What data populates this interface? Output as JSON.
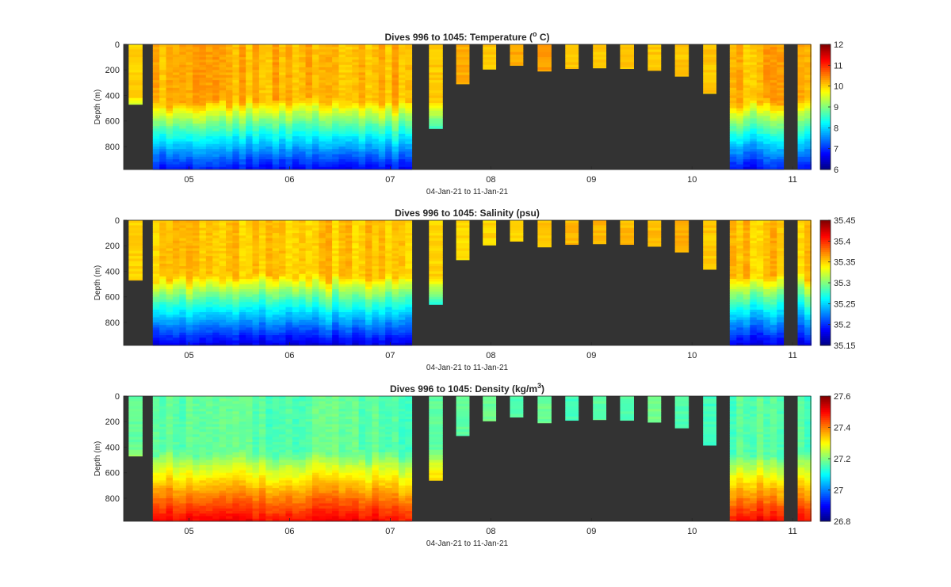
{
  "chart_data": [
    {
      "type": "heatmap",
      "title": "Dives 996 to 1045: Temperature (",
      "title_sup": "o",
      "title_tail": " C)",
      "ylabel": "Depth (m)",
      "xlabel": "04-Jan-21 to 11-Jan-21",
      "xticks": [
        "05",
        "06",
        "07",
        "08",
        "09",
        "10",
        "11"
      ],
      "yticks": [
        "0",
        "200",
        "400",
        "600",
        "800"
      ],
      "ylim": [
        0,
        980
      ],
      "cbar_ticks": [
        "6",
        "7",
        "8",
        "9",
        "10",
        "11",
        "12"
      ],
      "clim": [
        6,
        12
      ],
      "surface_value": 10.2,
      "deep_value": 6.8,
      "thermocline_depth_m": 450
    },
    {
      "type": "heatmap",
      "title": "Dives 996 to 1045: Salinity (psu)",
      "ylabel": "Depth (m)",
      "xlabel": "04-Jan-21 to 11-Jan-21",
      "xticks": [
        "05",
        "06",
        "07",
        "08",
        "09",
        "10",
        "11"
      ],
      "yticks": [
        "0",
        "200",
        "400",
        "600",
        "800"
      ],
      "ylim": [
        0,
        980
      ],
      "cbar_ticks": [
        "35.15",
        "35.2",
        "35.25",
        "35.3",
        "35.35",
        "35.4",
        "35.45"
      ],
      "clim": [
        35.15,
        35.45
      ],
      "surface_value": 35.355,
      "deep_value": 35.18,
      "thermocline_depth_m": 450
    },
    {
      "type": "heatmap",
      "title": "Dives 996 to 1045: Density (kg/m",
      "title_sup": "3",
      "title_tail": ")",
      "ylabel": "Depth (m)",
      "xlabel": "04-Jan-21 to 11-Jan-21",
      "xticks": [
        "05",
        "06",
        "07",
        "08",
        "09",
        "10",
        "11"
      ],
      "yticks": [
        "0",
        "200",
        "400",
        "600",
        "800"
      ],
      "ylim": [
        0,
        980
      ],
      "cbar_ticks": [
        "26.8",
        "27",
        "27.2",
        "27.4",
        "27.6"
      ],
      "clim": [
        26.8,
        27.6
      ],
      "surface_value": 27.17,
      "deep_value": 27.5,
      "thermocline_depth_m": 450
    }
  ],
  "dive_columns": [
    {
      "start_day": 4.4,
      "end_day": 4.535,
      "max_depth_m": 470,
      "type": "short"
    },
    {
      "start_day": 4.64,
      "end_day": 7.215,
      "max_depth_m": 980,
      "type": "full"
    },
    {
      "start_day": 7.385,
      "end_day": 7.52,
      "max_depth_m": 660,
      "type": "short"
    },
    {
      "start_day": 7.655,
      "end_day": 7.785,
      "max_depth_m": 310,
      "type": "short"
    },
    {
      "start_day": 7.92,
      "end_day": 8.05,
      "max_depth_m": 195,
      "type": "short"
    },
    {
      "start_day": 8.19,
      "end_day": 8.32,
      "max_depth_m": 165,
      "type": "short"
    },
    {
      "start_day": 8.465,
      "end_day": 8.6,
      "max_depth_m": 210,
      "type": "short"
    },
    {
      "start_day": 8.74,
      "end_day": 8.87,
      "max_depth_m": 190,
      "type": "short"
    },
    {
      "start_day": 9.015,
      "end_day": 9.145,
      "max_depth_m": 185,
      "type": "short"
    },
    {
      "start_day": 9.285,
      "end_day": 9.42,
      "max_depth_m": 190,
      "type": "short"
    },
    {
      "start_day": 9.56,
      "end_day": 9.69,
      "max_depth_m": 205,
      "type": "short"
    },
    {
      "start_day": 9.83,
      "end_day": 9.965,
      "max_depth_m": 250,
      "type": "short"
    },
    {
      "start_day": 10.11,
      "end_day": 10.24,
      "max_depth_m": 385,
      "type": "short"
    },
    {
      "start_day": 10.375,
      "end_day": 10.91,
      "max_depth_m": 980,
      "type": "full"
    },
    {
      "start_day": 11.05,
      "end_day": 11.185,
      "max_depth_m": 980,
      "type": "full"
    }
  ],
  "time_axis": {
    "xlim": [
      4.35,
      11.18
    ],
    "first_tick_day": 5
  },
  "colors": {
    "no_data": "#333333",
    "colormap": "jet"
  }
}
